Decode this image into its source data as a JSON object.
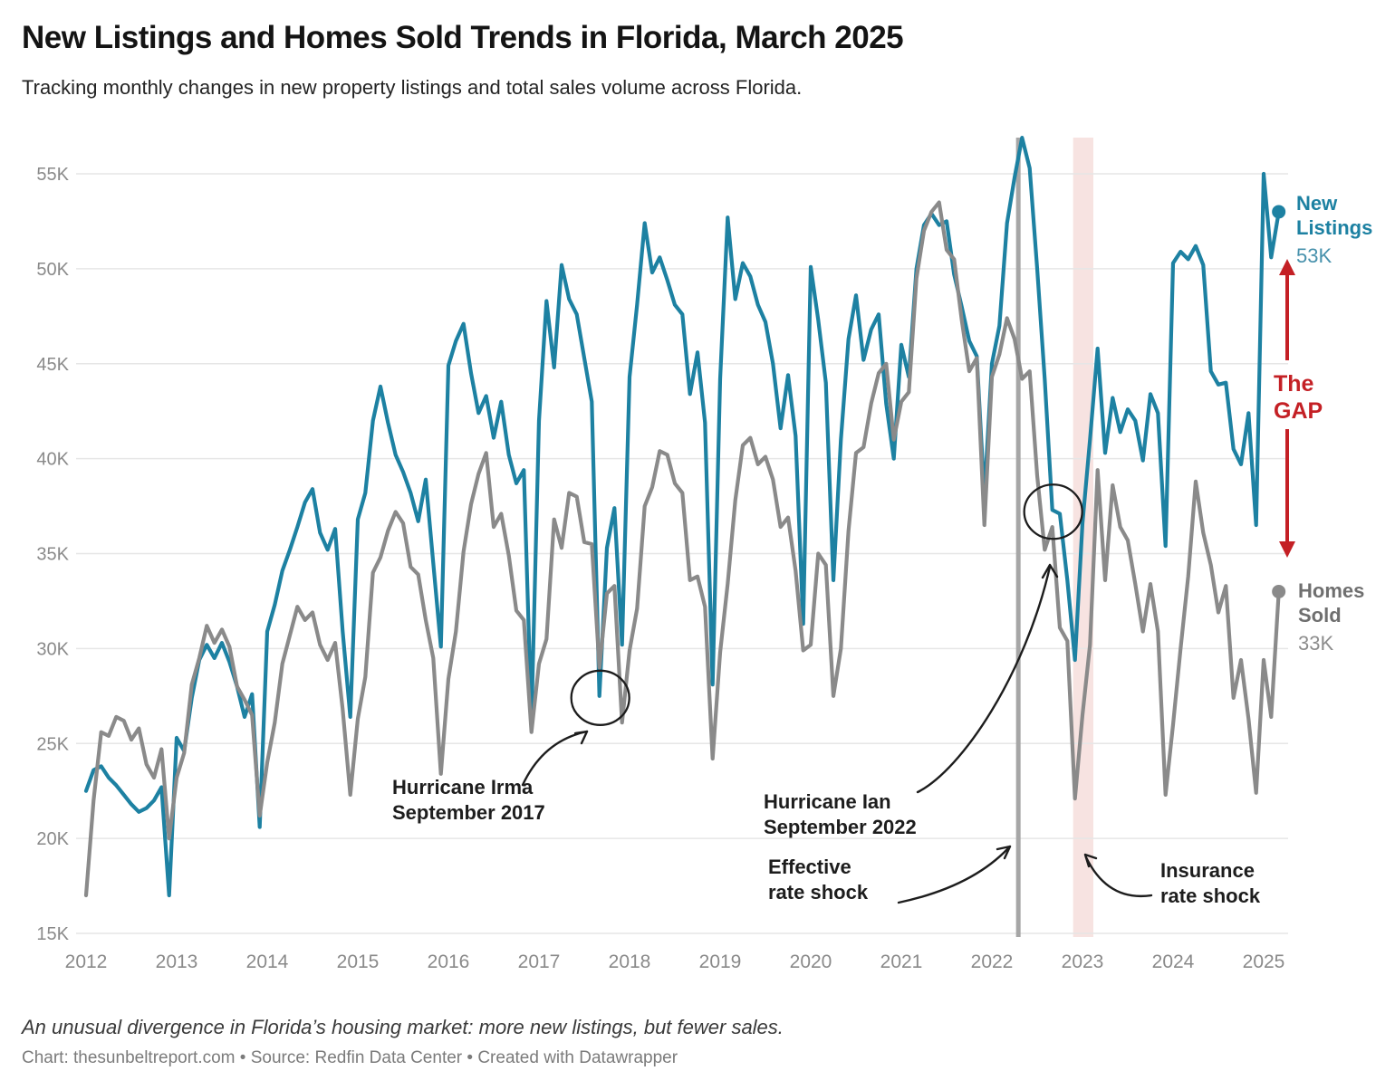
{
  "title": "New Listings and Homes Sold Trends in Florida, March 2025",
  "subtitle": "Tracking monthly changes in new property listings and total sales volume across Florida.",
  "footer": {
    "note": "An unusual divergence in Florida’s housing market: more new listings, but fewer sales.",
    "credits": "Chart: thesunbeltreport.com • Source: Redfin Data Center • Created with Datawrapper"
  },
  "chart_data": {
    "type": "line",
    "frequency": "monthly",
    "x_start": "2012-01",
    "x_end": "2025-03",
    "x_tick_labels": [
      "2012",
      "2013",
      "2014",
      "2015",
      "2016",
      "2017",
      "2018",
      "2019",
      "2020",
      "2021",
      "2022",
      "2023",
      "2024",
      "2025"
    ],
    "y_ticks": [
      "15K",
      "20K",
      "25K",
      "30K",
      "35K",
      "40K",
      "45K",
      "50K",
      "55K"
    ],
    "y_tick_values": [
      15000,
      20000,
      25000,
      30000,
      35000,
      40000,
      45000,
      50000,
      55000
    ],
    "ylim": [
      15000,
      57500
    ],
    "grid": "horizontal",
    "colors": {
      "new_listings": "#1d81a2",
      "new_listings_value": "#4791ac",
      "homes_sold": "#8a8a8a",
      "homes_sold_label": "#6f6f6f",
      "gap_red": "#c42025",
      "shock_line": "#a6a6a6",
      "insurance_band": "#f7e3e1",
      "gridline": "#e6e6e6",
      "axis_text": "#8a8a8a",
      "annotation_ink": "#1d1d1d"
    },
    "series": [
      {
        "name": "New Listings",
        "end_label": "New\nListings",
        "end_value_label": "53K",
        "values_unit": "thousands",
        "values": [
          22.5,
          23.6,
          23.8,
          23.2,
          22.8,
          22.3,
          21.8,
          21.4,
          21.6,
          22.0,
          22.7,
          17.0,
          25.3,
          24.6,
          27.4,
          29.4,
          30.2,
          29.5,
          30.3,
          29.3,
          28.0,
          26.4,
          27.6,
          20.6,
          30.9,
          32.3,
          34.1,
          35.2,
          36.4,
          37.7,
          38.4,
          36.1,
          35.2,
          36.3,
          30.9,
          26.4,
          36.8,
          38.2,
          42.0,
          43.8,
          41.9,
          40.2,
          39.3,
          38.2,
          36.7,
          38.9,
          34.5,
          30.1,
          44.9,
          46.2,
          47.1,
          44.5,
          42.4,
          43.3,
          41.1,
          43.0,
          40.2,
          38.7,
          39.4,
          26.2,
          42.0,
          48.3,
          44.8,
          50.2,
          48.4,
          47.6,
          45.3,
          43.0,
          27.5,
          35.3,
          37.4,
          30.2,
          44.3,
          48.1,
          52.4,
          49.8,
          50.6,
          49.4,
          48.1,
          47.6,
          43.4,
          45.6,
          41.9,
          28.1,
          44.2,
          52.7,
          48.4,
          50.3,
          49.6,
          48.1,
          47.2,
          45.0,
          41.6,
          44.4,
          41.2,
          31.3,
          50.1,
          47.3,
          44.0,
          33.6,
          41.0,
          46.3,
          48.6,
          45.2,
          46.8,
          47.6,
          42.9,
          40.0,
          46.0,
          44.3,
          50.0,
          52.3,
          52.9,
          52.3,
          52.5,
          49.7,
          48.0,
          46.2,
          45.4,
          38.0,
          45.0,
          47.0,
          52.4,
          54.8,
          56.9,
          55.3,
          50.0,
          44.2,
          37.3,
          37.1,
          33.6,
          29.4,
          36.6,
          41.0,
          45.8,
          40.3,
          43.2,
          41.4,
          42.6,
          42.0,
          39.9,
          43.4,
          42.4,
          35.4,
          50.3,
          50.9,
          50.5,
          51.2,
          50.2,
          44.6,
          43.9,
          44.0,
          40.5,
          39.7,
          42.4,
          36.5,
          55.0,
          50.6,
          53.0
        ]
      },
      {
        "name": "Homes Sold",
        "end_label": "Homes\nSold",
        "end_value_label": "33K",
        "values_unit": "thousands",
        "values": [
          17.0,
          22.0,
          25.6,
          25.4,
          26.4,
          26.2,
          25.2,
          25.8,
          23.9,
          23.2,
          24.7,
          20.0,
          23.2,
          24.5,
          28.1,
          29.5,
          31.2,
          30.3,
          31.0,
          30.1,
          28.0,
          27.3,
          26.5,
          21.2,
          24.0,
          26.1,
          29.2,
          30.7,
          32.2,
          31.5,
          31.9,
          30.2,
          29.4,
          30.3,
          26.8,
          22.3,
          26.3,
          28.5,
          34.0,
          34.8,
          36.2,
          37.2,
          36.6,
          34.3,
          33.9,
          31.5,
          29.5,
          23.4,
          28.4,
          30.9,
          35.1,
          37.6,
          39.2,
          40.3,
          36.4,
          37.1,
          34.9,
          32.0,
          31.5,
          25.6,
          29.2,
          30.5,
          36.8,
          35.3,
          38.2,
          38.0,
          35.6,
          35.5,
          29.0,
          32.9,
          33.3,
          26.1,
          29.9,
          32.1,
          37.5,
          38.5,
          40.4,
          40.2,
          38.7,
          38.2,
          33.6,
          33.8,
          32.2,
          24.2,
          29.8,
          33.4,
          37.8,
          40.7,
          41.1,
          39.7,
          40.1,
          38.9,
          36.4,
          36.9,
          34.1,
          29.9,
          30.2,
          35.0,
          34.4,
          27.5,
          30.0,
          36.2,
          40.3,
          40.6,
          42.9,
          44.5,
          45.0,
          41.0,
          43.0,
          43.5,
          49.5,
          52.0,
          53.0,
          53.5,
          51.0,
          50.5,
          47.3,
          44.6,
          45.3,
          36.5,
          44.3,
          45.5,
          47.4,
          46.3,
          44.2,
          44.6,
          39.1,
          35.2,
          36.4,
          31.1,
          30.4,
          22.1,
          26.5,
          30.2,
          39.4,
          33.6,
          38.6,
          36.4,
          35.7,
          33.4,
          30.9,
          33.4,
          30.9,
          22.3,
          26.0,
          30.0,
          33.8,
          38.8,
          36.1,
          34.4,
          31.9,
          33.3,
          27.4,
          29.4,
          26.3,
          22.4,
          29.4,
          26.4,
          33.0
        ]
      }
    ],
    "annotations": {
      "irma": {
        "text": "Hurricane Irma\nSeptember 2017",
        "circled_month": "2017-09"
      },
      "ian": {
        "text": "Hurricane Ian\nSeptember 2022",
        "circled_month": "2022-09"
      },
      "effective_rate_shock": {
        "text": "Effective\nrate shock",
        "line_month": "2022-04"
      },
      "insurance_rate_shock": {
        "text": "Insurance\nrate shock",
        "band_months": [
          "2022-12",
          "2023-01"
        ]
      },
      "gap": {
        "text": "The\nGAP"
      }
    }
  }
}
